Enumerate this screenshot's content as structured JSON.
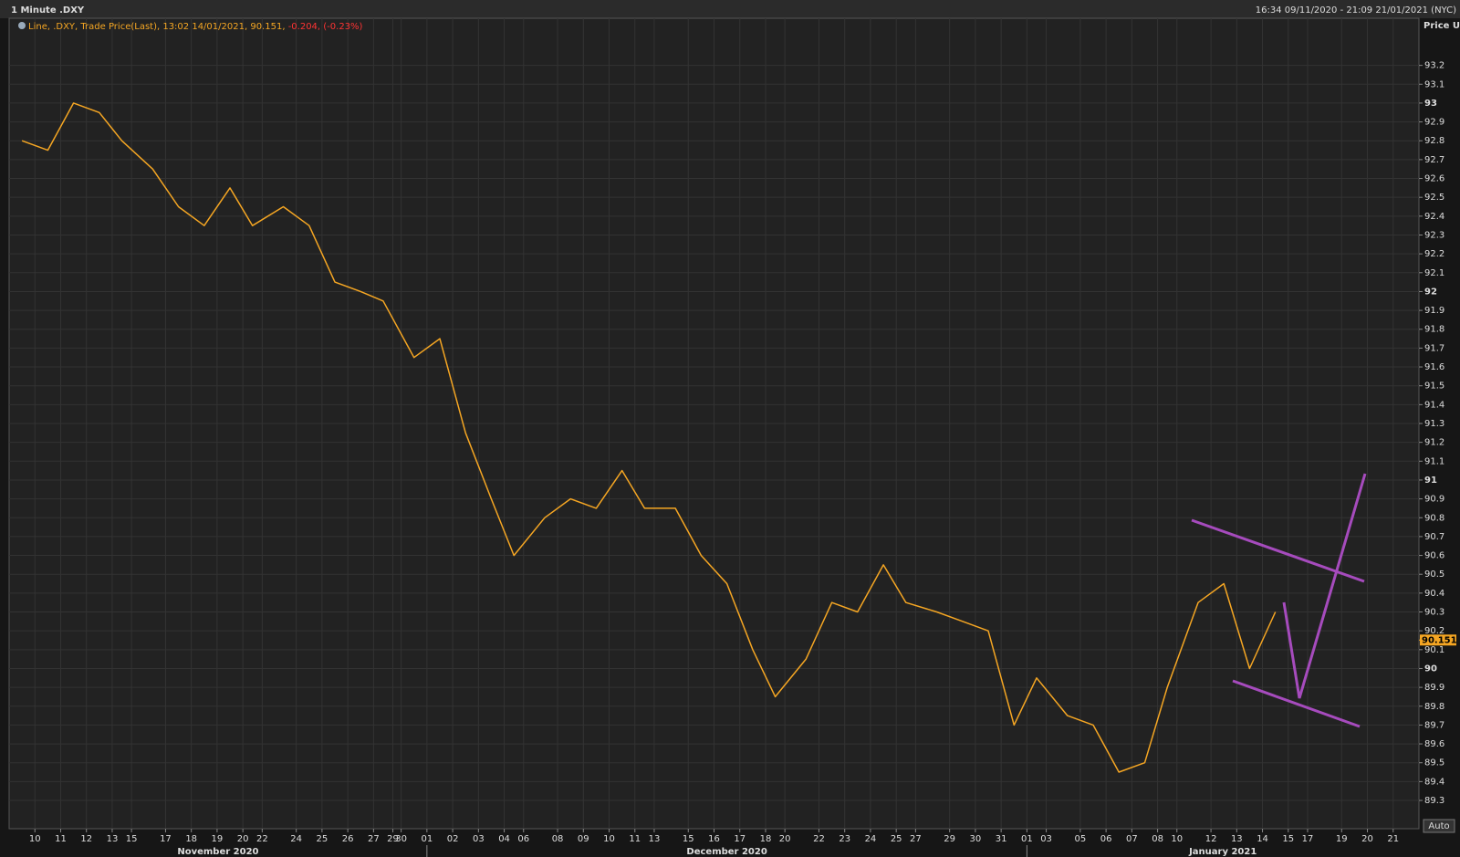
{
  "chart_data": {
    "type": "line",
    "title": "1 Minute .DXY",
    "range_text": "16:34 09/11/2020 - 21:09 21/01/2021 (NYC)",
    "legend_text": "Line, .DXY, Trade Price(Last), 13:02 14/01/2021, 90.151, ",
    "legend_change": "-0.204, (-0.23%)",
    "y_axis_label": "Price USD",
    "last_value": 90.151,
    "auto_button": "Auto",
    "x": [
      "2020-11-09",
      "2020-11-10",
      "2020-11-11",
      "2020-11-12",
      "2020-11-13",
      "2020-11-16",
      "2020-11-17",
      "2020-11-18",
      "2020-11-19",
      "2020-11-20",
      "2020-11-23",
      "2020-11-24",
      "2020-11-25",
      "2020-11-26",
      "2020-11-27",
      "2020-11-30",
      "2020-12-01",
      "2020-12-02",
      "2020-12-03",
      "2020-12-04",
      "2020-12-07",
      "2020-12-08",
      "2020-12-09",
      "2020-12-10",
      "2020-12-11",
      "2020-12-14",
      "2020-12-15",
      "2020-12-16",
      "2020-12-17",
      "2020-12-18",
      "2020-12-21",
      "2020-12-22",
      "2020-12-23",
      "2020-12-24",
      "2020-12-25",
      "2020-12-28",
      "2020-12-29",
      "2020-12-30",
      "2020-12-31",
      "2021-01-01",
      "2021-01-04",
      "2021-01-05",
      "2021-01-06",
      "2021-01-07",
      "2021-01-08",
      "2021-01-11",
      "2021-01-12",
      "2021-01-13",
      "2021-01-14"
    ],
    "series": [
      {
        "name": ".DXY",
        "color": "#f5a623",
        "values": [
          92.8,
          92.75,
          93.0,
          92.95,
          92.8,
          92.65,
          92.45,
          92.35,
          92.55,
          92.35,
          92.45,
          92.35,
          92.05,
          92.0,
          91.95,
          91.65,
          91.75,
          91.25,
          90.9,
          90.6,
          90.8,
          90.9,
          90.85,
          91.05,
          90.85,
          90.85,
          90.6,
          90.45,
          90.1,
          89.85,
          90.05,
          90.35,
          90.3,
          90.55,
          90.35,
          90.3,
          90.25,
          90.2,
          89.7,
          89.95,
          89.75,
          89.7,
          89.45,
          89.5,
          89.9,
          90.35,
          90.45,
          90.0,
          90.3
        ]
      }
    ],
    "xlim": [
      "2020-11-09",
      "2021-01-22"
    ],
    "xticks": [
      {
        "value": "2020-11-10",
        "label": "10"
      },
      {
        "value": "2020-11-11",
        "label": "11"
      },
      {
        "value": "2020-11-12",
        "label": "12"
      },
      {
        "value": "2020-11-13",
        "label": "13"
      },
      {
        "value": "2020-11-15",
        "label": "15"
      },
      {
        "value": "2020-11-17",
        "label": "17"
      },
      {
        "value": "2020-11-18",
        "label": "18"
      },
      {
        "value": "2020-11-19",
        "label": "19"
      },
      {
        "value": "2020-11-20",
        "label": "20"
      },
      {
        "value": "2020-11-22",
        "label": "22"
      },
      {
        "value": "2020-11-24",
        "label": "24"
      },
      {
        "value": "2020-11-25",
        "label": "25"
      },
      {
        "value": "2020-11-26",
        "label": "26"
      },
      {
        "value": "2020-11-27",
        "label": "27"
      },
      {
        "value": "2020-11-29",
        "label": "29"
      },
      {
        "value": "2020-11-30",
        "label": "30"
      },
      {
        "value": "2020-12-01",
        "label": "01"
      },
      {
        "value": "2020-12-02",
        "label": "02"
      },
      {
        "value": "2020-12-03",
        "label": "03"
      },
      {
        "value": "2020-12-04",
        "label": "04"
      },
      {
        "value": "2020-12-06",
        "label": "06"
      },
      {
        "value": "2020-12-08",
        "label": "08"
      },
      {
        "value": "2020-12-09",
        "label": "09"
      },
      {
        "value": "2020-12-10",
        "label": "10"
      },
      {
        "value": "2020-12-11",
        "label": "11"
      },
      {
        "value": "2020-12-13",
        "label": "13"
      },
      {
        "value": "2020-12-15",
        "label": "15"
      },
      {
        "value": "2020-12-16",
        "label": "16"
      },
      {
        "value": "2020-12-17",
        "label": "17"
      },
      {
        "value": "2020-12-18",
        "label": "18"
      },
      {
        "value": "2020-12-20",
        "label": "20"
      },
      {
        "value": "2020-12-22",
        "label": "22"
      },
      {
        "value": "2020-12-23",
        "label": "23"
      },
      {
        "value": "2020-12-24",
        "label": "24"
      },
      {
        "value": "2020-12-25",
        "label": "25"
      },
      {
        "value": "2020-12-27",
        "label": "27"
      },
      {
        "value": "2020-12-29",
        "label": "29"
      },
      {
        "value": "2020-12-30",
        "label": "30"
      },
      {
        "value": "2020-12-31",
        "label": "31"
      },
      {
        "value": "2021-01-01",
        "label": "01"
      },
      {
        "value": "2021-01-03",
        "label": "03"
      },
      {
        "value": "2021-01-05",
        "label": "05"
      },
      {
        "value": "2021-01-06",
        "label": "06"
      },
      {
        "value": "2021-01-07",
        "label": "07"
      },
      {
        "value": "2021-01-08",
        "label": "08"
      },
      {
        "value": "2021-01-10",
        "label": "10"
      },
      {
        "value": "2021-01-12",
        "label": "12"
      },
      {
        "value": "2021-01-13",
        "label": "13"
      },
      {
        "value": "2021-01-14",
        "label": "14"
      },
      {
        "value": "2021-01-15",
        "label": "15"
      },
      {
        "value": "2021-01-17",
        "label": "17"
      },
      {
        "value": "2021-01-19",
        "label": "19"
      },
      {
        "value": "2021-01-20",
        "label": "20"
      },
      {
        "value": "2021-01-21",
        "label": "21"
      }
    ],
    "months": [
      {
        "value": "2020-11",
        "label": "November 2020"
      },
      {
        "value": "2020-12",
        "label": "December 2020"
      },
      {
        "value": "2021-01",
        "label": "January 2021"
      }
    ],
    "ylim": [
      89.15,
      93.45
    ],
    "yticks": [
      89.3,
      89.4,
      89.5,
      89.6,
      89.7,
      89.8,
      89.9,
      90,
      90.1,
      90.2,
      90.3,
      90.4,
      90.5,
      90.6,
      90.7,
      90.8,
      90.9,
      91,
      91.1,
      91.2,
      91.3,
      91.4,
      91.5,
      91.6,
      91.7,
      91.8,
      91.9,
      92,
      92.1,
      92.2,
      92.3,
      92.4,
      92.5,
      92.6,
      92.7,
      92.8,
      92.9,
      93,
      93.1,
      93.2
    ],
    "grid": true
  }
}
